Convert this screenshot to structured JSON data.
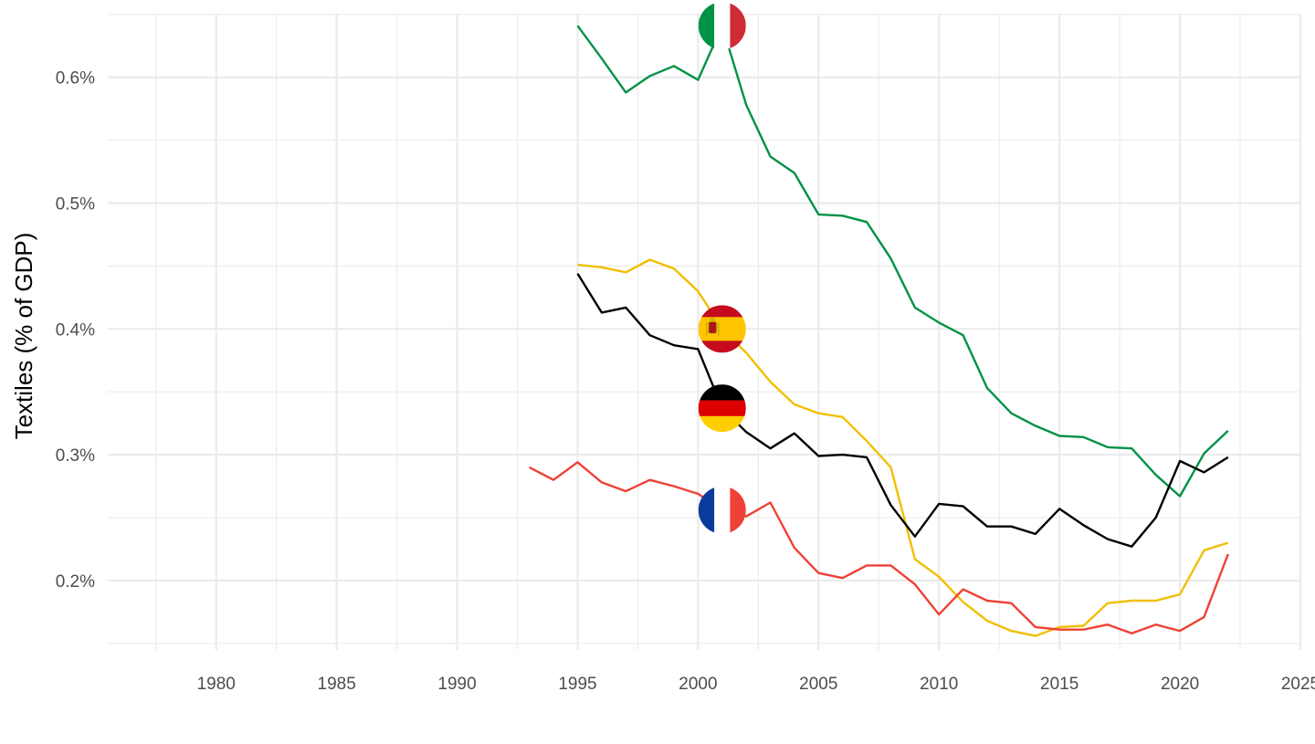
{
  "chart_data": {
    "type": "line",
    "ylabel": "Textiles (% of GDP)",
    "xlabel": "",
    "xlim": [
      1975.5,
      2025
    ],
    "ylim": [
      0.1448,
      0.6506
    ],
    "x_ticks": [
      1980,
      1985,
      1990,
      1995,
      2000,
      2005,
      2010,
      2015,
      2020,
      2025
    ],
    "y_ticks": [
      0.2,
      0.3,
      0.4,
      0.5,
      0.6
    ],
    "y_tick_labels": [
      "0.2%",
      "0.3%",
      "0.4%",
      "0.5%",
      "0.6%"
    ],
    "grid": true,
    "legend": "flag icons on lines at year 2001",
    "series": [
      {
        "country": "Italy",
        "color": "#009246",
        "flag": "italy-flag",
        "x": [
          1995,
          1996,
          1997,
          1998,
          1999,
          2000,
          2001,
          2002,
          2003,
          2004,
          2005,
          2006,
          2007,
          2008,
          2009,
          2010,
          2011,
          2012,
          2013,
          2014,
          2015,
          2016,
          2017,
          2018,
          2019,
          2020,
          2021,
          2022
        ],
        "values": [
          0.641,
          0.615,
          0.588,
          0.601,
          0.609,
          0.598,
          0.641,
          0.578,
          0.537,
          0.524,
          0.491,
          0.49,
          0.485,
          0.456,
          0.417,
          0.405,
          0.395,
          0.353,
          0.333,
          0.323,
          0.315,
          0.314,
          0.306,
          0.305,
          0.284,
          0.267,
          0.301,
          0.319
        ]
      },
      {
        "country": "Spain",
        "color": "#f1bf00",
        "flag": "spain-flag",
        "x": [
          1995,
          1996,
          1997,
          1998,
          1999,
          2000,
          2001,
          2002,
          2003,
          2004,
          2005,
          2006,
          2007,
          2008,
          2009,
          2010,
          2011,
          2012,
          2013,
          2014,
          2015,
          2016,
          2017,
          2018,
          2019,
          2020,
          2021,
          2022
        ],
        "values": [
          0.451,
          0.449,
          0.445,
          0.455,
          0.448,
          0.43,
          0.4,
          0.381,
          0.358,
          0.34,
          0.333,
          0.33,
          0.311,
          0.29,
          0.217,
          0.203,
          0.183,
          0.168,
          0.16,
          0.156,
          0.163,
          0.164,
          0.182,
          0.184,
          0.184,
          0.189,
          0.224,
          0.23
        ]
      },
      {
        "country": "Germany",
        "color": "#000000",
        "flag": "germany-flag",
        "x": [
          1995,
          1996,
          1997,
          1998,
          1999,
          2000,
          2001,
          2002,
          2003,
          2004,
          2005,
          2006,
          2007,
          2008,
          2009,
          2010,
          2011,
          2012,
          2013,
          2014,
          2015,
          2016,
          2017,
          2018,
          2019,
          2020,
          2021,
          2022
        ],
        "values": [
          0.444,
          0.413,
          0.417,
          0.395,
          0.387,
          0.384,
          0.337,
          0.318,
          0.305,
          0.317,
          0.299,
          0.3,
          0.298,
          0.26,
          0.235,
          0.261,
          0.259,
          0.243,
          0.243,
          0.237,
          0.257,
          0.244,
          0.233,
          0.227,
          0.25,
          0.295,
          0.286,
          0.298
        ]
      },
      {
        "country": "France",
        "color": "#ef4135",
        "flag": "france-flag",
        "x": [
          1993,
          1994,
          1995,
          1996,
          1997,
          1998,
          1999,
          2000,
          2001,
          2002,
          2003,
          2004,
          2005,
          2006,
          2007,
          2008,
          2009,
          2010,
          2011,
          2012,
          2013,
          2014,
          2015,
          2016,
          2017,
          2018,
          2019,
          2020,
          2021,
          2022
        ],
        "values": [
          0.29,
          0.28,
          0.294,
          0.278,
          0.271,
          0.28,
          0.275,
          0.269,
          0.256,
          0.251,
          0.262,
          0.226,
          0.206,
          0.202,
          0.212,
          0.212,
          0.197,
          0.173,
          0.193,
          0.184,
          0.182,
          0.163,
          0.161,
          0.161,
          0.165,
          0.158,
          0.165,
          0.16,
          0.171,
          0.221
        ]
      }
    ]
  }
}
